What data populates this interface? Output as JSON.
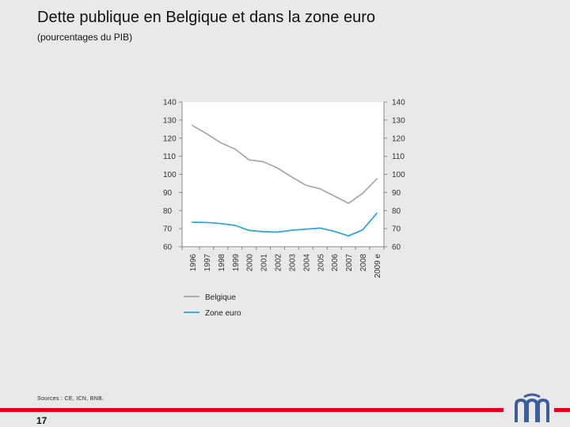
{
  "header": {
    "title": "Dette publique en Belgique et dans la zone euro",
    "subtitle": "(pourcentages du PIB)"
  },
  "chart_data": {
    "type": "line",
    "categories": [
      "1996",
      "1997",
      "1998",
      "1999",
      "2000",
      "2001",
      "2002",
      "2003",
      "2004",
      "2005",
      "2006",
      "2007",
      "2008",
      "2009 e"
    ],
    "series": [
      {
        "name": "Belgique",
        "color": "#a6a6a6",
        "values": [
          127,
          122.5,
          117.5,
          114,
          108,
          107,
          103.5,
          98.5,
          94,
          92,
          88,
          84,
          89.5,
          97.5
        ]
      },
      {
        "name": "Zone euro",
        "color": "#29a3d9",
        "values": [
          73.5,
          73.4,
          72.8,
          71.8,
          69.0,
          68.3,
          68.1,
          69.1,
          69.7,
          70.3,
          68.5,
          66.0,
          69.3,
          78.5
        ]
      }
    ],
    "yticks": [
      140,
      130,
      120,
      110,
      100,
      90,
      80,
      70,
      60
    ],
    "ylim": [
      60,
      140
    ],
    "xlabel": "",
    "ylabel": "",
    "legend": "below",
    "grid": false
  },
  "footer": {
    "sources": "Sources : CE, ICN, BNB.",
    "page_number": "17"
  },
  "colors": {
    "accent_red": "#e3001b",
    "logo_blue": "#3f5d9e",
    "axis": "#8a8a8a",
    "plot_background": "#ffffff"
  }
}
